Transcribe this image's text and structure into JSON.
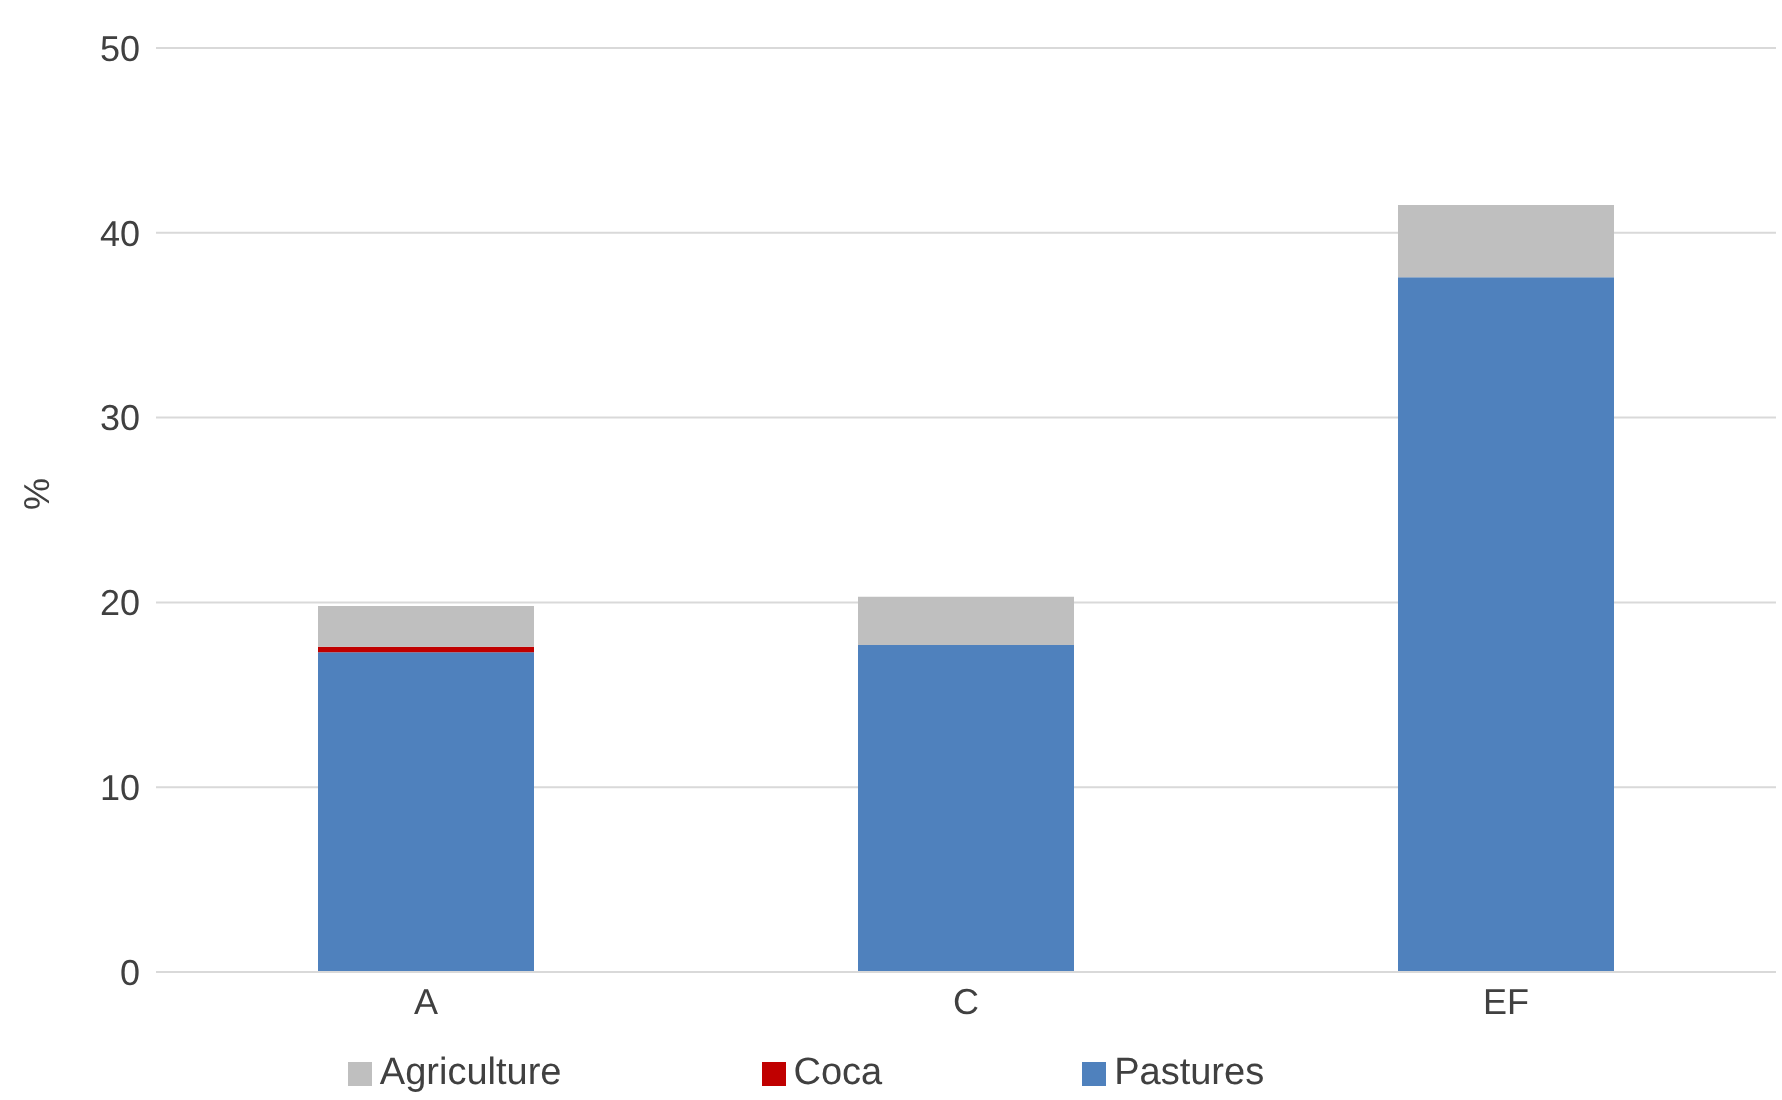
{
  "chart_data": {
    "type": "bar",
    "stacked": true,
    "ylabel": "%",
    "categories": [
      "A",
      "C",
      "EF"
    ],
    "series": [
      {
        "name": "Pastures",
        "color": "#4f81bd",
        "values": [
          17.3,
          17.7,
          37.6
        ]
      },
      {
        "name": "Coca",
        "color": "#c00000",
        "values": [
          0.3,
          0,
          0
        ]
      },
      {
        "name": "Agriculture",
        "color": "#bfbfbf",
        "values": [
          2.2,
          2.6,
          3.9
        ]
      }
    ],
    "ylim": [
      0,
      50
    ],
    "yticks": [
      0,
      10,
      20,
      30,
      40,
      50
    ],
    "grid": "y",
    "legend": "bottom"
  }
}
